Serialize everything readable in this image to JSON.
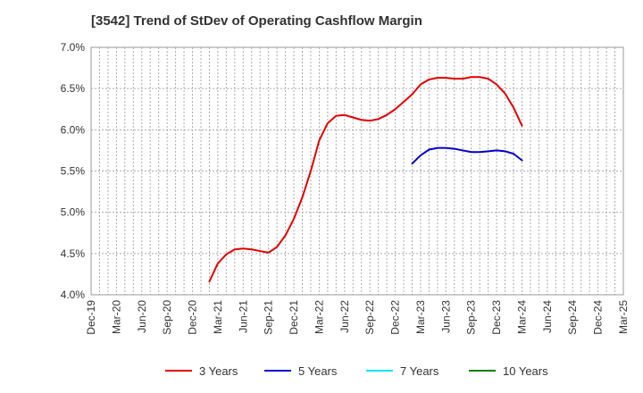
{
  "title": "[3542]  Trend of StDev of Operating Cashflow Margin",
  "chart_data": {
    "type": "line",
    "title": "[3542]  Trend of StDev of Operating Cashflow Margin",
    "xlabel": "",
    "ylabel": "",
    "ylim": [
      4.0,
      7.0
    ],
    "y_ticks": [
      4.0,
      4.5,
      5.0,
      5.5,
      6.0,
      6.5,
      7.0
    ],
    "y_tick_labels": [
      "4.0%",
      "4.5%",
      "5.0%",
      "5.5%",
      "6.0%",
      "6.5%",
      "7.0%"
    ],
    "x_range": [
      "Dec-19",
      "Mar-25"
    ],
    "x_tick_labels": [
      "Dec-19",
      "Mar-20",
      "Jun-20",
      "Sep-20",
      "Dec-20",
      "Mar-21",
      "Jun-21",
      "Sep-21",
      "Dec-21",
      "Mar-22",
      "Jun-22",
      "Sep-22",
      "Dec-22",
      "Mar-23",
      "Jun-23",
      "Sep-23",
      "Dec-23",
      "Mar-24",
      "Jun-24",
      "Sep-24",
      "Dec-24",
      "Mar-25"
    ],
    "grid": true,
    "legend_position": "bottom",
    "series": [
      {
        "name": "3 Years",
        "color": "#e00000",
        "points": [
          [
            "Feb-21",
            4.16
          ],
          [
            "Mar-21",
            4.38
          ],
          [
            "Apr-21",
            4.49
          ],
          [
            "May-21",
            4.55
          ],
          [
            "Jun-21",
            4.56
          ],
          [
            "Jul-21",
            4.55
          ],
          [
            "Aug-21",
            4.53
          ],
          [
            "Sep-21",
            4.51
          ],
          [
            "Oct-21",
            4.58
          ],
          [
            "Nov-21",
            4.72
          ],
          [
            "Dec-21",
            4.92
          ],
          [
            "Jan-22",
            5.18
          ],
          [
            "Feb-22",
            5.5
          ],
          [
            "Mar-22",
            5.87
          ],
          [
            "Apr-22",
            6.08
          ],
          [
            "May-22",
            6.17
          ],
          [
            "Jun-22",
            6.18
          ],
          [
            "Jul-22",
            6.15
          ],
          [
            "Aug-22",
            6.12
          ],
          [
            "Sep-22",
            6.11
          ],
          [
            "Oct-22",
            6.13
          ],
          [
            "Nov-22",
            6.18
          ],
          [
            "Dec-22",
            6.25
          ],
          [
            "Jan-23",
            6.34
          ],
          [
            "Feb-23",
            6.43
          ],
          [
            "Mar-23",
            6.55
          ],
          [
            "Apr-23",
            6.61
          ],
          [
            "May-23",
            6.63
          ],
          [
            "Jun-23",
            6.63
          ],
          [
            "Jul-23",
            6.62
          ],
          [
            "Aug-23",
            6.62
          ],
          [
            "Sep-23",
            6.64
          ],
          [
            "Oct-23",
            6.64
          ],
          [
            "Nov-23",
            6.62
          ],
          [
            "Dec-23",
            6.55
          ],
          [
            "Jan-24",
            6.44
          ],
          [
            "Feb-24",
            6.27
          ],
          [
            "Mar-24",
            6.05
          ]
        ]
      },
      {
        "name": "5 Years",
        "color": "#0000cc",
        "points": [
          [
            "Feb-23",
            5.59
          ],
          [
            "Mar-23",
            5.69
          ],
          [
            "Apr-23",
            5.76
          ],
          [
            "May-23",
            5.78
          ],
          [
            "Jun-23",
            5.78
          ],
          [
            "Jul-23",
            5.77
          ],
          [
            "Aug-23",
            5.75
          ],
          [
            "Sep-23",
            5.73
          ],
          [
            "Oct-23",
            5.73
          ],
          [
            "Nov-23",
            5.74
          ],
          [
            "Dec-23",
            5.75
          ],
          [
            "Jan-24",
            5.74
          ],
          [
            "Feb-24",
            5.71
          ],
          [
            "Mar-24",
            5.63
          ]
        ]
      },
      {
        "name": "7 Years",
        "color": "#00e5ee",
        "points": []
      },
      {
        "name": "10 Years",
        "color": "#008000",
        "points": []
      }
    ]
  }
}
